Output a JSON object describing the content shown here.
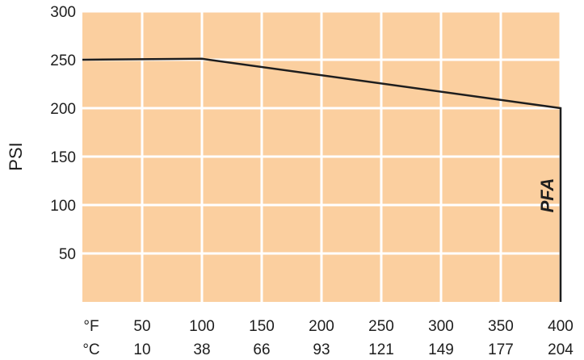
{
  "chart_data": {
    "type": "line",
    "title": "",
    "xlabel": "",
    "ylabel": "PSI",
    "xlim": [
      0,
      400
    ],
    "ylim": [
      0,
      300
    ],
    "grid": true,
    "plot_background": "#fbcf9f",
    "grid_color": "#ffffff",
    "line_color": "#1e1e1e",
    "x_unit_labels": [
      "°F",
      "°C"
    ],
    "x_ticks": [
      {
        "f": 50,
        "f_label": "50",
        "c_label": "10"
      },
      {
        "f": 100,
        "f_label": "100",
        "c_label": "38"
      },
      {
        "f": 150,
        "f_label": "150",
        "c_label": "66"
      },
      {
        "f": 200,
        "f_label": "200",
        "c_label": "93"
      },
      {
        "f": 250,
        "f_label": "250",
        "c_label": "121"
      },
      {
        "f": 300,
        "f_label": "300",
        "c_label": "149"
      },
      {
        "f": 350,
        "f_label": "350",
        "c_label": "177"
      },
      {
        "f": 400,
        "f_label": "400",
        "c_label": "204"
      }
    ],
    "y_ticks": [
      {
        "v": 50,
        "label": "50"
      },
      {
        "v": 100,
        "label": "100"
      },
      {
        "v": 150,
        "label": "150"
      },
      {
        "v": 200,
        "label": "200"
      },
      {
        "v": 250,
        "label": "250"
      },
      {
        "v": 300,
        "label": "300"
      }
    ],
    "series": [
      {
        "x": [
          0,
          100,
          400,
          400
        ],
        "y": [
          250,
          251,
          200,
          0
        ]
      }
    ],
    "annotations": [
      {
        "text": "PFA",
        "x": 394,
        "y": 110
      }
    ]
  }
}
